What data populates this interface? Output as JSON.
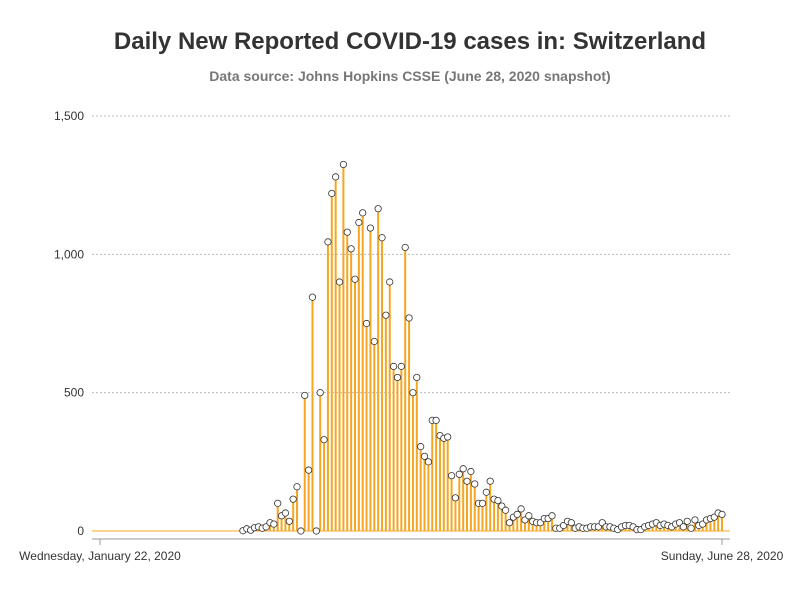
{
  "chart_data": {
    "type": "bar",
    "title": "Daily New Reported COVID-19 cases in: Switzerland",
    "subtitle": "Data source: Johns Hopkins CSSE (June 28, 2020 snapshot)",
    "xlabel": "",
    "ylabel": "",
    "x_start": "2020-01-22",
    "x_end": "2020-06-28",
    "x_tick_labels": [
      "Wednesday, January 22, 2020",
      "Sunday, June 28, 2020"
    ],
    "ylim": [
      0,
      1500
    ],
    "y_ticks": [
      0,
      500,
      1000,
      1500
    ],
    "y_tick_labels": [
      "0",
      "500",
      "1,000",
      "1,500"
    ],
    "grid": true,
    "colors": {
      "bar": "#f5a623",
      "marker_fill": "#ffffff",
      "marker_stroke": "#333333",
      "grid": "#bbbbbb",
      "axis": "#999999"
    },
    "values": [
      0,
      0,
      0,
      0,
      0,
      0,
      0,
      0,
      0,
      0,
      0,
      0,
      0,
      0,
      0,
      0,
      0,
      0,
      0,
      0,
      0,
      0,
      0,
      0,
      0,
      0,
      0,
      0,
      0,
      0,
      0,
      0,
      0,
      0,
      0,
      0,
      0,
      1,
      8,
      3,
      12,
      15,
      10,
      15,
      30,
      25,
      100,
      55,
      65,
      35,
      115,
      160,
      0,
      490,
      220,
      845,
      0,
      500,
      330,
      1045,
      1220,
      1280,
      900,
      1325,
      1080,
      1020,
      910,
      1115,
      1150,
      750,
      1095,
      685,
      1165,
      1060,
      780,
      900,
      595,
      555,
      595,
      1025,
      770,
      500,
      555,
      305,
      270,
      250,
      400,
      400,
      345,
      335,
      340,
      200,
      120,
      205,
      225,
      180,
      215,
      170,
      100,
      100,
      140,
      180,
      115,
      110,
      90,
      75,
      30,
      50,
      60,
      80,
      40,
      55,
      35,
      30,
      30,
      45,
      45,
      55,
      10,
      10,
      20,
      35,
      30,
      10,
      15,
      10,
      10,
      15,
      15,
      15,
      30,
      15,
      15,
      10,
      5,
      15,
      20,
      20,
      15,
      5,
      5,
      15,
      20,
      25,
      30,
      20,
      25,
      20,
      15,
      25,
      30,
      15,
      35,
      10,
      40,
      20,
      25,
      40,
      45,
      50,
      65,
      60
    ]
  }
}
